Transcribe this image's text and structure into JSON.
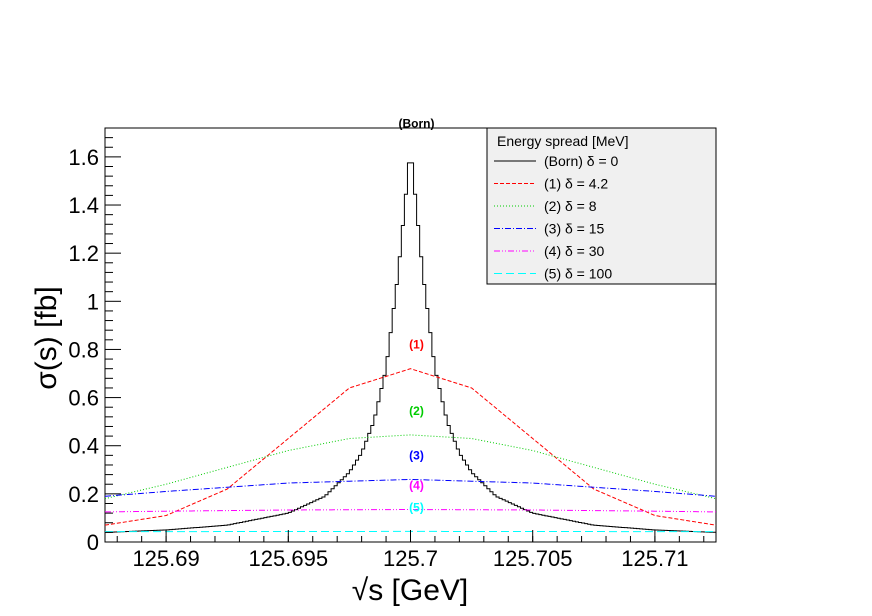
{
  "chart_data": {
    "type": "line",
    "xlabel": "√s   [GeV]",
    "ylabel": "σ(s) [fb]",
    "xlim": [
      125.6875,
      125.7125
    ],
    "ylim": [
      0,
      1.72
    ],
    "x_ticks": [
      "125.69",
      "125.695",
      "125.7",
      "125.705",
      "125.71"
    ],
    "x_tick_values": [
      125.69,
      125.695,
      125.7,
      125.705,
      125.71
    ],
    "y_ticks": [
      "0",
      "0.2",
      "0.4",
      "0.6",
      "0.8",
      "1",
      "1.2",
      "1.4",
      "1.6"
    ],
    "y_tick_values": [
      0,
      0.2,
      0.4,
      0.6,
      0.8,
      1.0,
      1.2,
      1.4,
      1.6
    ],
    "grid": false,
    "legend": {
      "title": "Energy spread [MeV]",
      "placement": "top-right"
    },
    "series": [
      {
        "name": "(Born) δ = 0",
        "peak_label": "(Born)",
        "color": "#000000",
        "style": "solid",
        "step": true,
        "x": [
          125.6875,
          125.69,
          125.6925,
          125.695,
          125.6965,
          125.6975,
          125.698,
          125.6985,
          125.699,
          125.6995,
          125.7,
          125.7005,
          125.701,
          125.7015,
          125.702,
          125.7025,
          125.7035,
          125.705,
          125.7075,
          125.71,
          125.7125
        ],
        "y": [
          0.04,
          0.05,
          0.07,
          0.12,
          0.19,
          0.29,
          0.37,
          0.5,
          0.72,
          1.12,
          1.64,
          1.12,
          0.72,
          0.5,
          0.37,
          0.29,
          0.19,
          0.12,
          0.07,
          0.05,
          0.04
        ]
      },
      {
        "name": "(1) δ = 4.2",
        "peak_label": "(1)",
        "color": "#ff0000",
        "style": "dashed",
        "x": [
          125.6875,
          125.69,
          125.6925,
          125.695,
          125.6975,
          125.7,
          125.7025,
          125.705,
          125.7075,
          125.71,
          125.7125
        ],
        "y": [
          0.07,
          0.11,
          0.22,
          0.43,
          0.64,
          0.72,
          0.64,
          0.43,
          0.22,
          0.11,
          0.07
        ]
      },
      {
        "name": "(2) δ = 8",
        "peak_label": "(2)",
        "color": "#00cc00",
        "style": "dotted",
        "x": [
          125.6875,
          125.69,
          125.6925,
          125.695,
          125.6975,
          125.7,
          125.7025,
          125.705,
          125.7075,
          125.71,
          125.7125
        ],
        "y": [
          0.18,
          0.24,
          0.31,
          0.38,
          0.43,
          0.445,
          0.43,
          0.38,
          0.31,
          0.24,
          0.18
        ]
      },
      {
        "name": "(3) δ = 15",
        "peak_label": "(3)",
        "color": "#0000ff",
        "style": "dashdot",
        "x": [
          125.6875,
          125.69,
          125.695,
          125.7,
          125.705,
          125.71,
          125.7125
        ],
        "y": [
          0.19,
          0.21,
          0.245,
          0.26,
          0.245,
          0.21,
          0.19
        ]
      },
      {
        "name": "(4) δ = 30",
        "peak_label": "(4)",
        "color": "#ff00ff",
        "style": "dashdotdot",
        "x": [
          125.6875,
          125.69,
          125.695,
          125.7,
          125.705,
          125.71,
          125.7125
        ],
        "y": [
          0.125,
          0.128,
          0.133,
          0.135,
          0.133,
          0.128,
          0.125
        ]
      },
      {
        "name": "(5) δ = 100",
        "peak_label": "(5)",
        "color": "#00ffff",
        "style": "longdash",
        "x": [
          125.6875,
          125.7,
          125.7125
        ],
        "y": [
          0.043,
          0.044,
          0.043
        ]
      }
    ]
  }
}
